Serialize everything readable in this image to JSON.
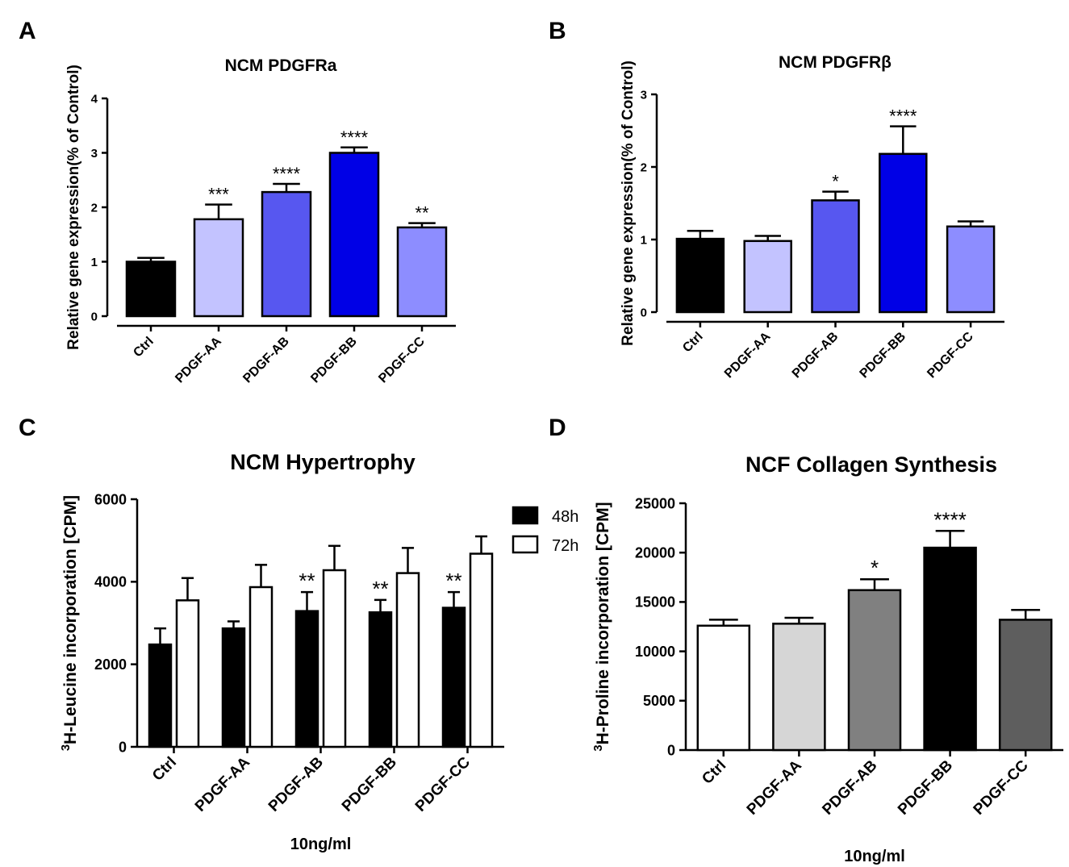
{
  "chart_data": [
    {
      "panel": "A",
      "type": "bar",
      "title": "NCM PDGFRa",
      "xlabel": "",
      "ylabel": "Relative gene expression(% of Control)",
      "ylim": [
        0,
        4
      ],
      "yticks": [
        "0",
        "1",
        "2",
        "3",
        "4"
      ],
      "categories": [
        "Ctrl",
        "PDGF-AA",
        "PDGF-AB",
        "PDGF-BB",
        "PDGF-CC"
      ],
      "values": [
        1.0,
        1.78,
        2.28,
        3.0,
        1.63
      ],
      "errors": [
        0.07,
        0.27,
        0.15,
        0.1,
        0.08
      ],
      "significance": [
        "",
        "***",
        "****",
        "****",
        "**"
      ],
      "colors": [
        "#000000",
        "#c3c3ff",
        "#5757f0",
        "#0000e6",
        "#8d8dff"
      ]
    },
    {
      "panel": "B",
      "type": "bar",
      "title": "NCM PDGFRβ",
      "xlabel": "",
      "ylabel": "Relative gene expression(% of Control)",
      "ylim": [
        0,
        3
      ],
      "yticks": [
        "0",
        "1",
        "2",
        "3"
      ],
      "categories": [
        "Ctrl",
        "PDGF-AA",
        "PDGF-AB",
        "PDGF-BB",
        "PDGF-CC"
      ],
      "values": [
        1.01,
        0.98,
        1.54,
        2.18,
        1.18
      ],
      "errors": [
        0.11,
        0.07,
        0.12,
        0.38,
        0.07
      ],
      "significance": [
        "",
        "",
        "*",
        "****",
        ""
      ],
      "colors": [
        "#000000",
        "#c3c3ff",
        "#5757f0",
        "#0000e6",
        "#8d8dff"
      ]
    },
    {
      "panel": "C",
      "type": "bar",
      "title": "NCM Hypertrophy",
      "xlabel": "10ng/ml",
      "ylabel_sup": "3",
      "ylabel": "H-Leucine incorporation [CPM]",
      "ylim": [
        0,
        6000
      ],
      "yticks": [
        "0",
        "2000",
        "4000",
        "6000"
      ],
      "categories": [
        "Ctrl",
        "PDGF-AA",
        "PDGF-AB",
        "PDGF-BB",
        "PDGF-CC"
      ],
      "series": [
        {
          "name": "48h",
          "values": [
            2480,
            2870,
            3290,
            3260,
            3370
          ],
          "errors": [
            390,
            170,
            460,
            300,
            380
          ],
          "color": "#000000"
        },
        {
          "name": "72h",
          "values": [
            3550,
            3870,
            4280,
            4210,
            4680
          ],
          "errors": [
            540,
            540,
            590,
            610,
            420
          ],
          "color": "#ffffff"
        }
      ],
      "significance": [
        "",
        "",
        "**",
        "**",
        "**"
      ]
    },
    {
      "panel": "D",
      "type": "bar",
      "title": "NCF Collagen Synthesis",
      "xlabel": "10ng/ml",
      "ylabel_sup": "3",
      "ylabel": "H-Proline incorporation [CPM]",
      "ylim": [
        0,
        25000
      ],
      "yticks": [
        "0",
        "5000",
        "10000",
        "15000",
        "20000",
        "25000"
      ],
      "categories": [
        "Ctrl",
        "PDGF-AA",
        "PDGF-AB",
        "PDGF-BB",
        "PDGF-CC"
      ],
      "values": [
        12600,
        12800,
        16200,
        20500,
        13200
      ],
      "errors": [
        600,
        600,
        1100,
        1700,
        1000
      ],
      "significance": [
        "",
        "",
        "*",
        "****",
        ""
      ],
      "colors": [
        "#ffffff",
        "#d6d6d6",
        "#808080",
        "#000000",
        "#5e5e5e"
      ]
    }
  ]
}
